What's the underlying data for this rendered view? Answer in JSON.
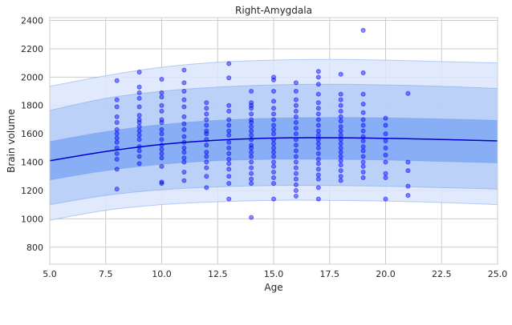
{
  "chart_data": {
    "type": "scatter",
    "title": "Right-Amygdala",
    "xlabel": "Age",
    "ylabel": "Brain volume",
    "xlim": [
      5,
      25
    ],
    "ylim": [
      680,
      2420
    ],
    "x_ticks": [
      "5.0",
      "7.5",
      "10.0",
      "12.5",
      "15.0",
      "17.5",
      "20.0",
      "22.5",
      "25.0"
    ],
    "x_tick_values": [
      5,
      7.5,
      10,
      12.5,
      15,
      17.5,
      20,
      22.5,
      25
    ],
    "y_ticks": [
      "800",
      "1000",
      "1200",
      "1400",
      "1600",
      "1800",
      "2000",
      "2200",
      "2400"
    ],
    "y_tick_values": [
      800,
      1000,
      1200,
      1400,
      1600,
      1800,
      2000,
      2200,
      2400
    ],
    "grid": true,
    "colors": {
      "points": "#0000ff",
      "median": "#0000cc",
      "band_inner": "#7fa8f5",
      "band_mid": "#b5cdf7",
      "band_outer": "#dbe6fb",
      "band_edge": "#6f98e8"
    },
    "median_curve": {
      "x": [
        5,
        7.5,
        10,
        12.5,
        15,
        17.5,
        20,
        22.5,
        25
      ],
      "y": [
        1410,
        1475,
        1525,
        1555,
        1570,
        1572,
        1568,
        1560,
        1550
      ]
    },
    "bands": [
      {
        "x": [
          5,
          7.5,
          10,
          12.5,
          15,
          17.5,
          20,
          22.5,
          25
        ],
        "lower": [
          990,
          1060,
          1100,
          1120,
          1130,
          1130,
          1125,
          1115,
          1100
        ],
        "upper": [
          1935,
          2010,
          2070,
          2105,
          2120,
          2125,
          2120,
          2110,
          2100
        ]
      },
      {
        "x": [
          5,
          7.5,
          10,
          12.5,
          15,
          17.5,
          20,
          22.5,
          25
        ],
        "lower": [
          1100,
          1165,
          1205,
          1225,
          1235,
          1235,
          1230,
          1220,
          1210
        ],
        "upper": [
          1765,
          1850,
          1900,
          1930,
          1945,
          1950,
          1945,
          1935,
          1920
        ]
      },
      {
        "x": [
          5,
          7.5,
          10,
          12.5,
          15,
          17.5,
          20,
          22.5,
          25
        ],
        "lower": [
          1275,
          1340,
          1385,
          1410,
          1420,
          1420,
          1415,
          1405,
          1395
        ],
        "upper": [
          1545,
          1615,
          1665,
          1695,
          1710,
          1715,
          1712,
          1705,
          1695
        ]
      }
    ],
    "points": {
      "x": [
        8,
        8,
        8,
        8,
        8,
        8,
        8,
        8,
        8,
        8,
        8,
        8,
        8,
        8,
        9,
        9,
        9,
        9,
        9,
        9,
        9,
        9,
        9,
        9,
        9,
        9,
        9,
        9,
        9,
        9,
        10,
        10,
        10,
        10,
        10,
        10,
        10,
        10,
        10,
        10,
        10,
        10,
        10,
        10,
        10,
        10,
        10,
        11,
        11,
        11,
        11,
        11,
        11,
        11,
        11,
        11,
        11,
        11,
        11,
        11,
        11,
        11,
        11,
        12,
        12,
        12,
        12,
        12,
        12,
        12,
        12,
        12,
        12,
        12,
        12,
        12,
        12,
        12,
        13,
        13,
        13,
        13,
        13,
        13,
        13,
        13,
        13,
        13,
        13,
        13,
        13,
        13,
        13,
        13,
        13,
        14,
        14,
        14,
        14,
        14,
        14,
        14,
        14,
        14,
        14,
        14,
        14,
        14,
        14,
        14,
        14,
        14,
        14,
        14,
        14,
        14,
        15,
        15,
        15,
        15,
        15,
        15,
        15,
        15,
        15,
        15,
        15,
        15,
        15,
        15,
        15,
        15,
        15,
        15,
        15,
        15,
        15,
        16,
        16,
        16,
        16,
        16,
        16,
        16,
        16,
        16,
        16,
        16,
        16,
        16,
        16,
        16,
        16,
        16,
        16,
        16,
        16,
        17,
        17,
        17,
        17,
        17,
        17,
        17,
        17,
        17,
        17,
        17,
        17,
        17,
        17,
        17,
        17,
        17,
        17,
        17,
        17,
        17,
        17,
        18,
        18,
        18,
        18,
        18,
        18,
        18,
        18,
        18,
        18,
        18,
        18,
        18,
        18,
        18,
        18,
        18,
        18,
        18,
        18,
        19,
        19,
        19,
        19,
        19,
        19,
        19,
        19,
        19,
        19,
        19,
        19,
        19,
        19,
        19,
        19,
        19,
        20,
        20,
        20,
        20,
        20,
        20,
        20,
        20,
        20,
        20,
        21,
        21,
        21,
        21,
        21
      ],
      "y": [
        1210,
        1350,
        1420,
        1460,
        1500,
        1540,
        1570,
        1600,
        1630,
        1680,
        1720,
        1790,
        1840,
        1975,
        1390,
        1440,
        1480,
        1510,
        1560,
        1590,
        1620,
        1650,
        1680,
        1700,
        1730,
        1790,
        1850,
        1890,
        1930,
        2035,
        1250,
        1260,
        1370,
        1430,
        1460,
        1490,
        1520,
        1560,
        1600,
        1630,
        1680,
        1700,
        1760,
        1800,
        1860,
        1890,
        1985,
        1270,
        1330,
        1400,
        1430,
        1470,
        1500,
        1540,
        1580,
        1630,
        1670,
        1720,
        1790,
        1840,
        1900,
        1960,
        2050,
        1220,
        1300,
        1360,
        1400,
        1440,
        1470,
        1520,
        1560,
        1600,
        1620,
        1660,
        1700,
        1740,
        1780,
        1820,
        1140,
        1250,
        1300,
        1350,
        1390,
        1420,
        1460,
        1500,
        1540,
        1590,
        1620,
        1660,
        1700,
        1760,
        1800,
        1995,
        2095,
        1010,
        1250,
        1280,
        1320,
        1360,
        1400,
        1440,
        1470,
        1500,
        1520,
        1560,
        1590,
        1620,
        1650,
        1680,
        1700,
        1740,
        1780,
        1800,
        1820,
        1900,
        1140,
        1250,
        1290,
        1330,
        1370,
        1400,
        1440,
        1470,
        1500,
        1530,
        1560,
        1600,
        1630,
        1660,
        1700,
        1740,
        1780,
        1830,
        1900,
        1980,
        2000,
        1160,
        1200,
        1240,
        1280,
        1320,
        1360,
        1400,
        1440,
        1480,
        1520,
        1560,
        1600,
        1640,
        1680,
        1720,
        1760,
        1800,
        1840,
        1900,
        1960,
        1140,
        1220,
        1280,
        1310,
        1350,
        1390,
        1420,
        1460,
        1500,
        1530,
        1560,
        1590,
        1620,
        1660,
        1700,
        1740,
        1780,
        1820,
        1880,
        1950,
        2000,
        2040,
        1270,
        1300,
        1340,
        1380,
        1410,
        1440,
        1470,
        1500,
        1530,
        1560,
        1590,
        1620,
        1650,
        1690,
        1720,
        1760,
        1800,
        1840,
        1880,
        2020,
        1290,
        1330,
        1370,
        1400,
        1440,
        1480,
        1510,
        1550,
        1580,
        1620,
        1660,
        1700,
        1750,
        1810,
        1880,
        2030,
        2330,
        1140,
        1290,
        1320,
        1400,
        1450,
        1500,
        1550,
        1600,
        1660,
        1710,
        1165,
        1230,
        1340,
        1400,
        1885
      ]
    }
  }
}
